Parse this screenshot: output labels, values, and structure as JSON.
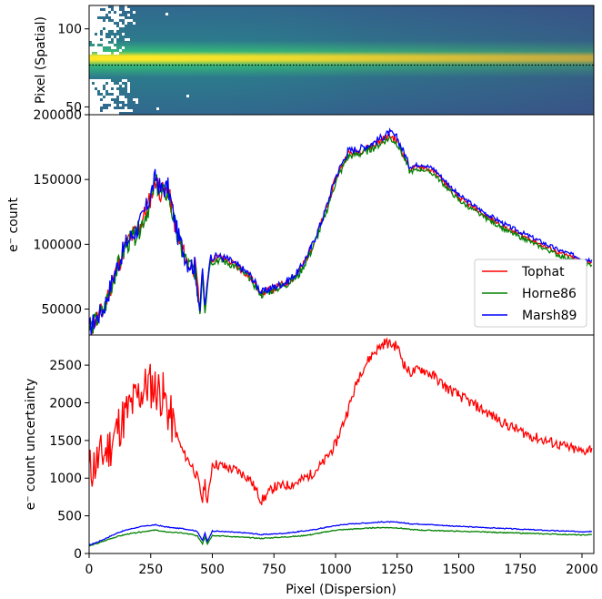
{
  "figure": {
    "xlabel": "Pixel (Dispersion)",
    "x_ticks": [
      0,
      250,
      500,
      750,
      1000,
      1250,
      1500,
      1750,
      2000
    ],
    "xlim": [
      0,
      2048
    ]
  },
  "chart_data": [
    {
      "type": "heatmap",
      "panel": "spatial-image",
      "ylabel": "Pixel (Spatial)",
      "ylim": [
        45,
        115
      ],
      "y_ticks": [
        50,
        100
      ],
      "trace_row": 71,
      "trace_line": "dotted",
      "colormap": "viridis",
      "masked_region_x": [
        0,
        190
      ],
      "masked_color": "#ffffff"
    },
    {
      "type": "line",
      "panel": "counts",
      "xlabel": "",
      "ylabel": "e⁻ count",
      "ylim": [
        30000,
        200000
      ],
      "y_ticks": [
        50000,
        100000,
        150000,
        200000
      ],
      "legend_position": "lower-right",
      "x": [
        0,
        60,
        100,
        150,
        200,
        240,
        270,
        290,
        320,
        360,
        400,
        430,
        450,
        460,
        470,
        490,
        520,
        560,
        600,
        650,
        700,
        750,
        800,
        850,
        900,
        950,
        1000,
        1050,
        1100,
        1150,
        1200,
        1220,
        1250,
        1280,
        1300,
        1350,
        1400,
        1450,
        1500,
        1600,
        1700,
        1800,
        1900,
        2000,
        2040
      ],
      "series": [
        {
          "name": "Tophat",
          "color": "#ff0000",
          "values": [
            35000,
            50000,
            75000,
            100000,
            112000,
            130000,
            150000,
            140000,
            142000,
            105000,
            85000,
            82000,
            48000,
            80000,
            50000,
            88000,
            90000,
            88000,
            83000,
            76000,
            62000,
            66000,
            70000,
            78000,
            96000,
            120000,
            150000,
            170000,
            172000,
            176000,
            182000,
            184000,
            180000,
            168000,
            158000,
            160000,
            156000,
            146000,
            136000,
            123000,
            112000,
            103000,
            94000,
            87000,
            86000
          ]
        },
        {
          "name": "Horne86",
          "color": "#008000",
          "values": [
            34000,
            49000,
            74000,
            99000,
            110000,
            128000,
            148000,
            138000,
            140000,
            103000,
            84000,
            80000,
            47000,
            78000,
            49000,
            86000,
            88000,
            86000,
            82000,
            74000,
            61000,
            65000,
            69000,
            76000,
            94000,
            118000,
            148000,
            168000,
            170000,
            174000,
            180000,
            182000,
            178000,
            166000,
            156000,
            158000,
            154000,
            144000,
            134000,
            121000,
            110000,
            101000,
            92000,
            85000,
            84000
          ]
        },
        {
          "name": "Marsh89",
          "color": "#0000ff",
          "values": [
            35000,
            51000,
            76000,
            101000,
            113000,
            132000,
            152000,
            142000,
            144000,
            107000,
            86000,
            83000,
            49000,
            82000,
            51000,
            90000,
            91000,
            89000,
            84000,
            77000,
            63000,
            67000,
            71000,
            79000,
            97000,
            121000,
            152000,
            172000,
            174000,
            178000,
            184000,
            186000,
            182000,
            170000,
            160000,
            162000,
            158000,
            148000,
            138000,
            125000,
            114000,
            105000,
            96000,
            89000,
            88000
          ]
        }
      ]
    },
    {
      "type": "line",
      "panel": "uncertainty",
      "xlabel": "Pixel (Dispersion)",
      "ylabel": "e⁻ count uncertainty",
      "ylim": [
        0,
        2900
      ],
      "y_ticks": [
        0,
        500,
        1000,
        1500,
        2000,
        2500
      ],
      "x": [
        0,
        40,
        80,
        120,
        160,
        200,
        240,
        270,
        300,
        340,
        380,
        420,
        440,
        460,
        470,
        480,
        500,
        550,
        600,
        650,
        700,
        750,
        800,
        850,
        900,
        950,
        1000,
        1050,
        1100,
        1150,
        1200,
        1250,
        1280,
        1300,
        1350,
        1400,
        1450,
        1500,
        1600,
        1700,
        1800,
        1900,
        2000,
        2040
      ],
      "series": [
        {
          "name": "Tophat",
          "color": "#ff0000",
          "values": [
            1100,
            1250,
            1400,
            1700,
            1900,
            2100,
            2250,
            2200,
            2100,
            1700,
            1350,
            1150,
            1000,
            700,
            950,
            650,
            1200,
            1150,
            1100,
            1000,
            700,
            880,
            900,
            950,
            1050,
            1200,
            1450,
            1900,
            2400,
            2650,
            2800,
            2750,
            2500,
            2400,
            2450,
            2350,
            2200,
            2100,
            1900,
            1700,
            1550,
            1450,
            1350,
            1400
          ]
        },
        {
          "name": "Horne86",
          "color": "#008000",
          "values": [
            100,
            140,
            190,
            230,
            260,
            280,
            300,
            310,
            290,
            280,
            270,
            250,
            230,
            130,
            220,
            130,
            240,
            230,
            220,
            210,
            200,
            210,
            220,
            230,
            250,
            280,
            310,
            320,
            330,
            340,
            345,
            340,
            330,
            320,
            310,
            305,
            300,
            295,
            285,
            275,
            265,
            255,
            245,
            250
          ]
        },
        {
          "name": "Marsh89",
          "color": "#0000ff",
          "values": [
            110,
            160,
            220,
            280,
            320,
            350,
            370,
            380,
            360,
            340,
            330,
            310,
            290,
            170,
            270,
            160,
            300,
            290,
            280,
            270,
            250,
            260,
            270,
            290,
            310,
            340,
            370,
            390,
            400,
            410,
            420,
            415,
            405,
            395,
            390,
            380,
            370,
            360,
            345,
            330,
            315,
            300,
            290,
            295
          ]
        }
      ]
    }
  ]
}
